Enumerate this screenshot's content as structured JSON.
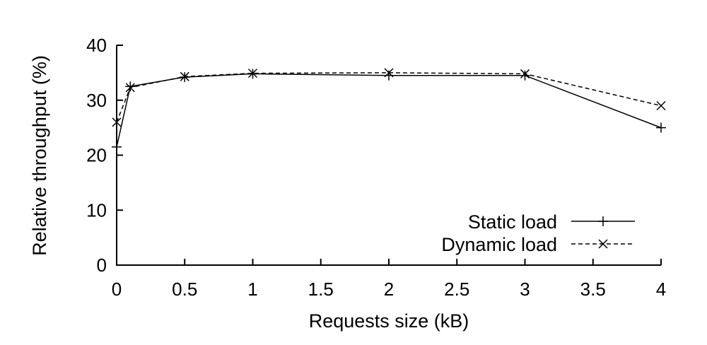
{
  "chart_data": {
    "type": "line",
    "xlabel": "Requests size (kB)",
    "ylabel": "Relative throughput (%)",
    "xlim": [
      0,
      4
    ],
    "ylim": [
      0,
      40
    ],
    "x_ticks": [
      "0",
      "0.5",
      "1",
      "1.5",
      "2",
      "2.5",
      "3",
      "3.5",
      "4"
    ],
    "y_ticks": [
      "0",
      "10",
      "20",
      "30",
      "40"
    ],
    "grid": false,
    "legend_position": "bottom-right",
    "series": [
      {
        "name": "Static load",
        "marker": "plus",
        "dash": "solid",
        "x": [
          0,
          0.1,
          0.5,
          1,
          2,
          3,
          4
        ],
        "y": [
          21.5,
          32.5,
          34.2,
          34.8,
          34.5,
          34.5,
          25.0
        ]
      },
      {
        "name": "Dynamic load",
        "marker": "cross",
        "dash": "dashed",
        "x": [
          0,
          0.1,
          0.5,
          1,
          2,
          3,
          4
        ],
        "y": [
          26.0,
          32.3,
          34.3,
          34.9,
          35.0,
          34.8,
          29.0
        ]
      }
    ]
  }
}
